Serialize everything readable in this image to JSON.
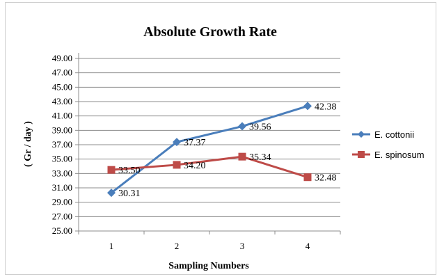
{
  "chart_data": {
    "type": "line",
    "title": "Absolute Growth Rate",
    "xlabel": "Sampling Numbers",
    "ylabel": "( Gr / day )",
    "categories": [
      "1",
      "2",
      "3",
      "4"
    ],
    "ylim": [
      25,
      49
    ],
    "yticks": [
      "25.00",
      "27.00",
      "29.00",
      "31.00",
      "33.00",
      "35.00",
      "37.00",
      "39.00",
      "41.00",
      "43.00",
      "45.00",
      "47.00",
      "49.00"
    ],
    "grid": "horizontal",
    "legend_position": "right",
    "series": [
      {
        "name": "E. cottonii",
        "color": "#4A7EBB",
        "marker": "diamond",
        "values": [
          30.31,
          37.37,
          39.56,
          42.38
        ],
        "labels": [
          "30.31",
          "37.37",
          "39.56",
          "42.38"
        ]
      },
      {
        "name": "E. spinosum",
        "color": "#BE4B48",
        "marker": "square",
        "values": [
          33.5,
          34.2,
          35.34,
          32.48
        ],
        "labels": [
          "33.50",
          "34.20",
          "35.34",
          "32.48"
        ]
      }
    ]
  }
}
